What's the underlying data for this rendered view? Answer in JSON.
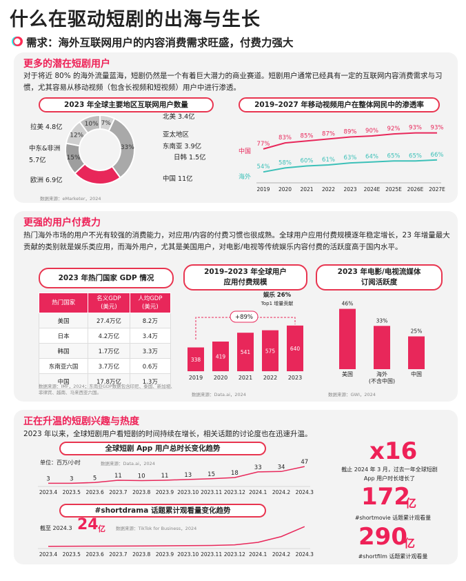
{
  "title": "什么在驱动短剧的出海与生长",
  "subtitle": "需求：海外互联网用户的内容消费需求旺盛，付费力强大",
  "s1": {
    "heading": "更多的潜在短剧用户",
    "para": "对于将近 80% 的海外流量蓝海，短剧仍然是一个有着巨大潜力的商业赛道。短剧用户通常已经具有一定的互联网内容消费需求与习惯，尤其容易从移动视频（包含长视频和短视频）用户中进行渗透。",
    "donut_title": "2023 年全球主要地区互联网用户数量",
    "line_title": "2019–2027 年移动视频用户在整体网民中的渗透率",
    "source": "数据来源：eMarketer，2024"
  },
  "s2": {
    "heading": "更强的用户付费力",
    "para": "热门海外市场的用户不光有较强的消费能力，对应用/内容的付费习惯也很成熟。全球用户应用付费规模逐年稳定增长，23 年增量最大贡献的类别就是娱乐类应用，而海外用户，尤其是美国用户，对电影/电视等传统娱乐内容付费的活跃度高于国内水平。",
    "gdp_title": "2023 年热门国家 GDP 情况",
    "app_title1": "2019–2023 年全球用户",
    "app_title2": "应用付费规模",
    "stream_title1": "2023 年电影/电视流媒体",
    "stream_title2": "订阅活跃度",
    "gdp_source": "数据来源：IMF，2024；东南亚GDP数据包含印尼、泰国、新加坡、菲律宾、越南、马来西亚六国。",
    "app_source": "数据来源：Data.ai，2024",
    "stream_source": "数据来源：GWI，2024",
    "growth": "+89%",
    "ent": "娱乐 26%",
    "ent_note": "Top1 增量贡献"
  },
  "gdp_table": {
    "headers": [
      "热门国家",
      "名义GDP\n(美元)",
      "人均GDP\n(美元)"
    ],
    "rows": [
      [
        "美国",
        "27.4万亿",
        "8.2万"
      ],
      [
        "日本",
        "4.2万亿",
        "3.4万"
      ],
      [
        "韩国",
        "1.7万亿",
        "3.3万"
      ],
      [
        "东南亚六国",
        "3.7万亿",
        "0.6万"
      ],
      [
        "中国",
        "17.8万亿",
        "1.3万"
      ]
    ]
  },
  "s3": {
    "heading": "正在升温的短剧兴趣与热度",
    "para": "2023 年以来，全球短剧用户看短剧的时间持续在增长，相关话题的讨论度也在迅速升温。",
    "app_time_title": "全球短剧 App 用户总时长变化趋势",
    "unit": "单位：百万/小时",
    "app_time_source": "数据来源：Data.ai，2024",
    "tag_title": "#shortdrama 话题累计观看量变化趋势",
    "tag_prefix": "截至 2024.3",
    "tag_value": "24",
    "tag_unit": "亿",
    "tag_source": "数据来源：TikTok for Business，2024",
    "x16": "x16",
    "x16_note": "截止 2024 年 3 月，过去一年全球短剧 App 用户时长增长了",
    "v172": "172",
    "v172_unit": "亿",
    "v172_note": "#shortmovie 话题累计观看量",
    "v290": "290",
    "v290_unit": "亿",
    "v290_note": "#shortfilm 话题累计观看量"
  },
  "chart_data": [
    {
      "type": "pie",
      "title": "2023 年全球主要地区互联网用户数量",
      "labels": [
        "北美 3.4亿",
        "亚太地区",
        "东南亚 3.9亿",
        "日韩 1.5亿",
        "中国 11亿",
        "欧洲 6.9亿",
        "中东&非洲 5.7亿",
        "拉美 4.8亿"
      ],
      "slices": [
        {
          "name": "北美",
          "value": 7
        },
        {
          "name": "亚太地区",
          "value": 33
        },
        {
          "name": "中国",
          "value": 23
        },
        {
          "name": "欧洲",
          "value": 15
        },
        {
          "name": "中东&非洲",
          "value": 12
        },
        {
          "name": "拉美",
          "value": 10
        }
      ],
      "colors": [
        "#d4d4d4",
        "#a9a9a9",
        "#e8275a",
        "#9e9e9e",
        "#cfcfcf",
        "#bdbdbd"
      ]
    },
    {
      "type": "line",
      "title": "2019–2027 年移动视频用户在整体网民中的渗透率",
      "categories": [
        "2019",
        "2020",
        "2021",
        "2022",
        "2023",
        "2024E",
        "2025E",
        "2026E",
        "2027E"
      ],
      "series": [
        {
          "name": "中国",
          "values": [
            77,
            83,
            85,
            87,
            89,
            90,
            92,
            93,
            93
          ],
          "color": "#e8275a"
        },
        {
          "name": "海外",
          "values": [
            54,
            58,
            60,
            61,
            63,
            64,
            65,
            65,
            66
          ],
          "color": "#3cc0b8"
        }
      ],
      "unit": "%"
    },
    {
      "type": "bar",
      "title": "2019–2023 年全球用户应用付费规模",
      "categories": [
        "2019",
        "2020",
        "2021",
        "2022",
        "2023"
      ],
      "values": [
        338,
        419,
        541,
        575,
        640
      ],
      "ylim": [
        0,
        700
      ]
    },
    {
      "type": "bar",
      "title": "2023 年电影/电视流媒体订阅活跃度",
      "categories": [
        "美国",
        "海外\n(不含中国)",
        "中国"
      ],
      "values": [
        46,
        33,
        25
      ],
      "unit": "%",
      "ylim": [
        0,
        50
      ]
    },
    {
      "type": "line",
      "title": "全球短剧 App 用户总时长变化趋势",
      "categories": [
        "2023.4",
        "2023.5",
        "2023.6",
        "2023.7",
        "2023.8",
        "2023.9",
        "2023.10",
        "2023.11",
        "2023.12",
        "2024.1",
        "2024.2",
        "2024.3"
      ],
      "values": [
        3,
        3,
        5,
        11,
        10,
        11,
        13,
        15,
        18,
        33,
        34,
        47
      ],
      "ylabel": "单位：百万/小时"
    },
    {
      "type": "line",
      "title": "#shortdrama 话题累计观看量变化趋势",
      "categories": [
        "2023.4",
        "2023.5",
        "2023.6",
        "2023.7",
        "2023.8",
        "2023.9",
        "2023.10",
        "2023.11",
        "2023.12",
        "2024.1",
        "2024.2",
        "2024.3"
      ],
      "values": [
        0.2,
        0.3,
        0.4,
        0.5,
        0.6,
        0.8,
        1,
        1.3,
        2,
        5,
        12,
        24
      ],
      "unit": "亿"
    }
  ]
}
